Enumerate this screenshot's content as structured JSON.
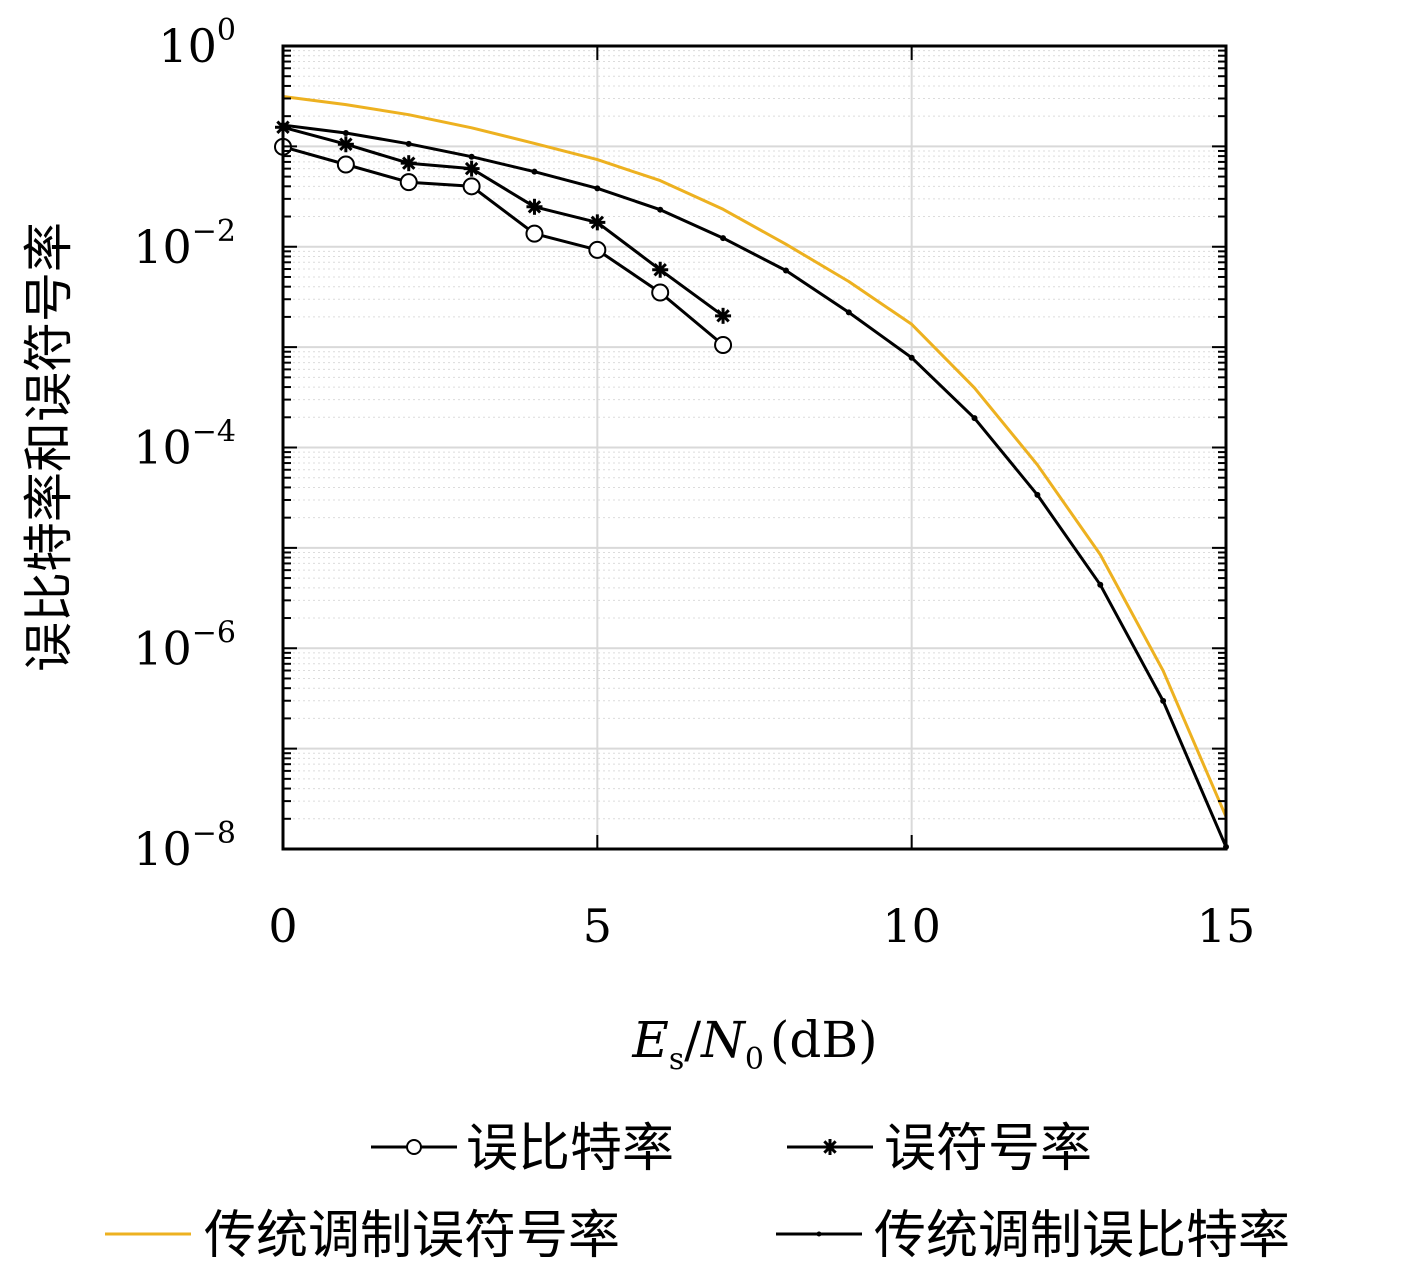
{
  "chart_data": {
    "type": "line",
    "xlabel": "E_s/N_0 (dB)",
    "xlabel_parts": {
      "E": "E",
      "s": "s",
      "slash": "/",
      "N": "N",
      "zero": "0",
      "unit": "(dB)"
    },
    "ylabel": "误比特率和误符号率",
    "xlim": [
      0,
      15
    ],
    "ylim": [
      1e-08,
      1
    ],
    "yscale": "log",
    "grid": true,
    "legend_position": "bottom",
    "x_ticks": [
      {
        "value": 0,
        "label": "0"
      },
      {
        "value": 5,
        "label": "5"
      },
      {
        "value": 10,
        "label": "10"
      },
      {
        "value": 15,
        "label": "15"
      }
    ],
    "y_ticks": [
      {
        "value": 1,
        "base": "10",
        "exp": "0"
      },
      {
        "value": 0.01,
        "base": "10",
        "exp": "-2"
      },
      {
        "value": 0.0001,
        "base": "10",
        "exp": "-4"
      },
      {
        "value": 1e-06,
        "base": "10",
        "exp": "-6"
      },
      {
        "value": 1e-08,
        "base": "10",
        "exp": "-8"
      }
    ],
    "series": [
      {
        "name": "误比特率",
        "color": "#000000",
        "marker": "circle",
        "x": [
          0,
          1,
          2,
          3,
          4,
          5,
          6,
          7
        ],
        "y": [
          0.099,
          0.066,
          0.044,
          0.04,
          0.0135,
          0.0093,
          0.0035,
          0.00105
        ]
      },
      {
        "name": "误符号率",
        "color": "#000000",
        "marker": "star",
        "x": [
          0,
          1,
          2,
          3,
          4,
          5,
          6,
          7
        ],
        "y": [
          0.155,
          0.105,
          0.068,
          0.06,
          0.025,
          0.0175,
          0.0059,
          0.00205
        ]
      },
      {
        "name": "传统调制误符号率",
        "color": "#EDB120",
        "marker": "none",
        "x": [
          0,
          1,
          2,
          3,
          4,
          5,
          6,
          7,
          8,
          9,
          10,
          11,
          12,
          13,
          14,
          15
        ],
        "y": [
          0.314,
          0.261,
          0.207,
          0.153,
          0.107,
          0.0739,
          0.0456,
          0.0236,
          0.0106,
          0.00451,
          0.00169,
          0.000392,
          6.73e-05,
          8.58e-06,
          5.98e-07,
          2.1e-08
        ]
      },
      {
        "name": "传统调制误比特率",
        "color": "#000000",
        "marker": "dot",
        "x": [
          0,
          1,
          2,
          3,
          4,
          5,
          6,
          7,
          8,
          9,
          10,
          11,
          12,
          13,
          14,
          15
        ],
        "y": [
          0.163,
          0.136,
          0.106,
          0.0789,
          0.056,
          0.0382,
          0.0234,
          0.0122,
          0.0058,
          0.00222,
          0.000784,
          0.000196,
          3.37e-05,
          4.29e-06,
          2.99e-07,
          1.05e-08
        ]
      }
    ]
  }
}
